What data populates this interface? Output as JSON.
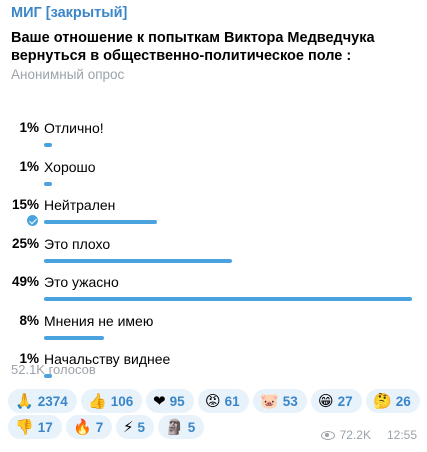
{
  "post": {
    "channel": "МИГ [закрытый]",
    "question": "Ваше отношение к попыткам Виктора Медведчука вернуться в общественно-политическое поле :",
    "poll_type": "Анонимный опрос",
    "total_votes": "52.1K голосов",
    "views": "72.2K",
    "time": "12:55"
  },
  "poll": {
    "options": [
      {
        "percent": "1%",
        "label": "Отлично!",
        "share": 0.01,
        "voted": false
      },
      {
        "percent": "1%",
        "label": "Хорошо",
        "share": 0.01,
        "voted": false
      },
      {
        "percent": "15%",
        "label": "Нейтрален",
        "share": 0.15,
        "voted": true
      },
      {
        "percent": "25%",
        "label": "Это плохо",
        "share": 0.25,
        "voted": false
      },
      {
        "percent": "49%",
        "label": "Это ужасно",
        "share": 0.49,
        "voted": false
      },
      {
        "percent": "8%",
        "label": "Мнения не имею",
        "share": 0.08,
        "voted": false
      },
      {
        "percent": "1%",
        "label": "Начальству виднее",
        "share": 0.01,
        "voted": false
      }
    ]
  },
  "reactions": [
    {
      "icon": "praying-hands-icon",
      "emoji": "🙏",
      "count": "2374"
    },
    {
      "icon": "thumbs-up-icon",
      "emoji": "👍",
      "count": "106"
    },
    {
      "icon": "heart-icon",
      "emoji": "❤",
      "count": "95"
    },
    {
      "icon": "angry-face-icon",
      "emoji": "😡",
      "count": "61"
    },
    {
      "icon": "pig-face-icon",
      "emoji": "🐷",
      "count": "53"
    },
    {
      "icon": "grinning-face-icon",
      "emoji": "😁",
      "count": "27"
    },
    {
      "icon": "thinking-face-icon",
      "emoji": "🤔",
      "count": "26"
    },
    {
      "icon": "thumbs-down-icon",
      "emoji": "👎",
      "count": "17"
    },
    {
      "icon": "fire-icon",
      "emoji": "🔥",
      "count": "7"
    },
    {
      "icon": "lightning-icon",
      "emoji": "⚡",
      "count": "5"
    },
    {
      "icon": "moai-icon",
      "emoji": "🗿",
      "count": "5"
    }
  ],
  "colors": {
    "accent": "#3a86c8",
    "bar": "#4aa3df",
    "muted": "#9aa3ab",
    "reaction_bg": "#e8f2fb"
  }
}
